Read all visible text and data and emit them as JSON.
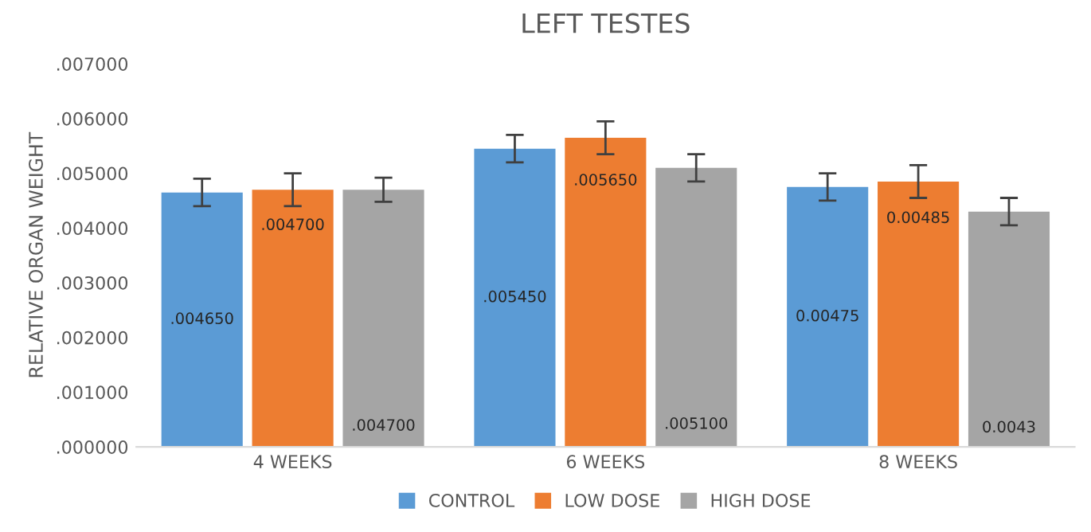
{
  "chart_data": {
    "type": "bar",
    "title": "LEFT TESTES",
    "ylabel": "RELATIVE ORGAN WEIGHT",
    "categories": [
      "4 WEEKS",
      "6 WEEKS",
      "8 WEEKS"
    ],
    "series": [
      {
        "name": "CONTROL",
        "color": "#5b9bd5",
        "values": [
          0.00465,
          0.00545,
          0.00475
        ],
        "errors": [
          0.00025,
          0.00025,
          0.00025
        ],
        "value_labels": [
          ".004650",
          ".005450",
          "0.00475"
        ]
      },
      {
        "name": "LOW DOSE",
        "color": "#ed7d31",
        "values": [
          0.0047,
          0.00565,
          0.00485
        ],
        "errors": [
          0.0003,
          0.0003,
          0.0003
        ],
        "value_labels": [
          ".004700",
          ".005650",
          "0.00485"
        ]
      },
      {
        "name": "HIGH DOSE",
        "color": "#a5a5a5",
        "values": [
          0.0047,
          0.0051,
          0.0043
        ],
        "errors": [
          0.00022,
          0.00025,
          0.00025
        ],
        "value_labels": [
          ".004700",
          ".005100",
          "0.0043"
        ]
      }
    ],
    "ylim": [
      0,
      0.007
    ],
    "yticks": [
      {
        "value": 0,
        "label": ".000000"
      },
      {
        "value": 0.001,
        "label": ".001000"
      },
      {
        "value": 0.002,
        "label": ".002000"
      },
      {
        "value": 0.003,
        "label": ".003000"
      },
      {
        "value": 0.004,
        "label": ".004000"
      },
      {
        "value": 0.005,
        "label": ".005000"
      },
      {
        "value": 0.006,
        "label": ".006000"
      },
      {
        "value": 0.007,
        "label": ".007000"
      }
    ],
    "grid": false,
    "legend": "bottom"
  }
}
